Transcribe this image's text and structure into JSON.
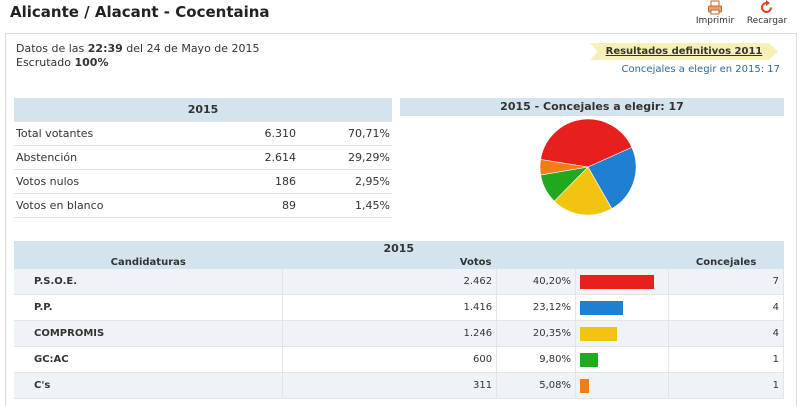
{
  "page_title": "Alicante / Alacant - Cocentaina",
  "toolbar": {
    "print_label": "Imprimir",
    "reload_label": "Recargar"
  },
  "timestamp": {
    "prefix": "Datos de las",
    "time": "22:39",
    "date_text": "del 24 de Mayo de 2015",
    "scrutiny_label": "Escrutado",
    "scrutiny_value": "100%"
  },
  "results_2011_link": "Resultados definitivos 2011",
  "council_to_elect": "Concejales a elegir en 2015: 17",
  "summary": {
    "header": "2015",
    "rows": [
      {
        "label": "Total votantes",
        "value": "6.310",
        "pct": "70,71%"
      },
      {
        "label": "Abstención",
        "value": "2.614",
        "pct": "29,29%"
      },
      {
        "label": "Votos nulos",
        "value": "186",
        "pct": "2,95%"
      },
      {
        "label": "Votos en blanco",
        "value": "89",
        "pct": "1,45%"
      }
    ]
  },
  "pie": {
    "header": "2015 - Concejales a elegir: 17"
  },
  "candidates": {
    "header": "2015",
    "col_candidaturas": "Candidaturas",
    "col_votos": "Votos",
    "col_concejales": "Concejales",
    "rows": [
      {
        "name": "P.S.O.E.",
        "votes": "2.462",
        "pct": "40,20%",
        "seats": "7",
        "color": "#e8201d"
      },
      {
        "name": "P.P.",
        "votes": "1.416",
        "pct": "23,12%",
        "seats": "4",
        "color": "#1f7fd1"
      },
      {
        "name": "COMPROMIS",
        "votes": "1.246",
        "pct": "20,35%",
        "seats": "4",
        "color": "#f1c40f"
      },
      {
        "name": "GC:AC",
        "votes": "600",
        "pct": "9,80%",
        "seats": "1",
        "color": "#22a81f"
      },
      {
        "name": "C's",
        "votes": "311",
        "pct": "5,08%",
        "seats": "1",
        "color": "#f07c1a"
      }
    ]
  },
  "chart_data": {
    "type": "pie",
    "title": "2015 - Concejales a elegir: 17",
    "series": [
      {
        "name": "P.S.O.E.",
        "value": 40.2,
        "color": "#e8201d"
      },
      {
        "name": "P.P.",
        "value": 23.12,
        "color": "#1f7fd1"
      },
      {
        "name": "COMPROMIS",
        "value": 20.35,
        "color": "#f1c40f"
      },
      {
        "name": "GC:AC",
        "value": 9.8,
        "color": "#22a81f"
      },
      {
        "name": "C's",
        "value": 5.08,
        "color": "#f07c1a"
      }
    ],
    "bar_max_pct": 40.2
  }
}
